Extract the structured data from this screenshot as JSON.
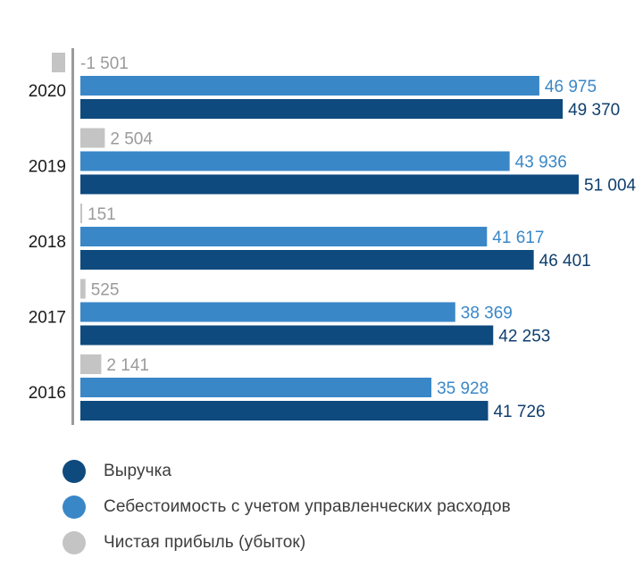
{
  "chart_data": {
    "type": "bar",
    "orientation": "horizontal",
    "title": "",
    "xlabel": "",
    "ylabel": "",
    "xlim": [
      0,
      51004
    ],
    "categories": [
      "2020",
      "2019",
      "2018",
      "2017",
      "2016"
    ],
    "series": [
      {
        "key": "net",
        "name": "Чистая прибыль (убыток)",
        "color": "#c4c4c4",
        "label_color": "#9a9a9a",
        "values": [
          -1501,
          2504,
          151,
          525,
          2141
        ],
        "labels": [
          "-1 501",
          "2 504",
          "151",
          "525",
          "2 141"
        ]
      },
      {
        "key": "cost",
        "name": "Себестоимость с учетом управленческих расходов",
        "color": "#3a87c8",
        "label_color": "#3a87c8",
        "values": [
          46975,
          43936,
          41617,
          38369,
          35928
        ],
        "labels": [
          "46 975",
          "43 936",
          "41 617",
          "38 369",
          "35 928"
        ]
      },
      {
        "key": "rev",
        "name": "Выручка",
        "color": "#0f4a7e",
        "label_color": "#0f3f6e",
        "values": [
          49370,
          51004,
          46401,
          42253,
          41726
        ],
        "labels": [
          "49 370",
          "51 004",
          "46 401",
          "42 253",
          "41 726"
        ]
      }
    ],
    "legend": [
      {
        "name": "Выручка",
        "color": "#0f4a7e"
      },
      {
        "name": "Себестоимость с учетом управленческих расходов",
        "color": "#3a87c8"
      },
      {
        "name": "Чистая прибыль (убыток)",
        "color": "#c4c4c4"
      }
    ],
    "axis_color": "#9b9b9b",
    "category_label_color": "#1a1a1a"
  }
}
